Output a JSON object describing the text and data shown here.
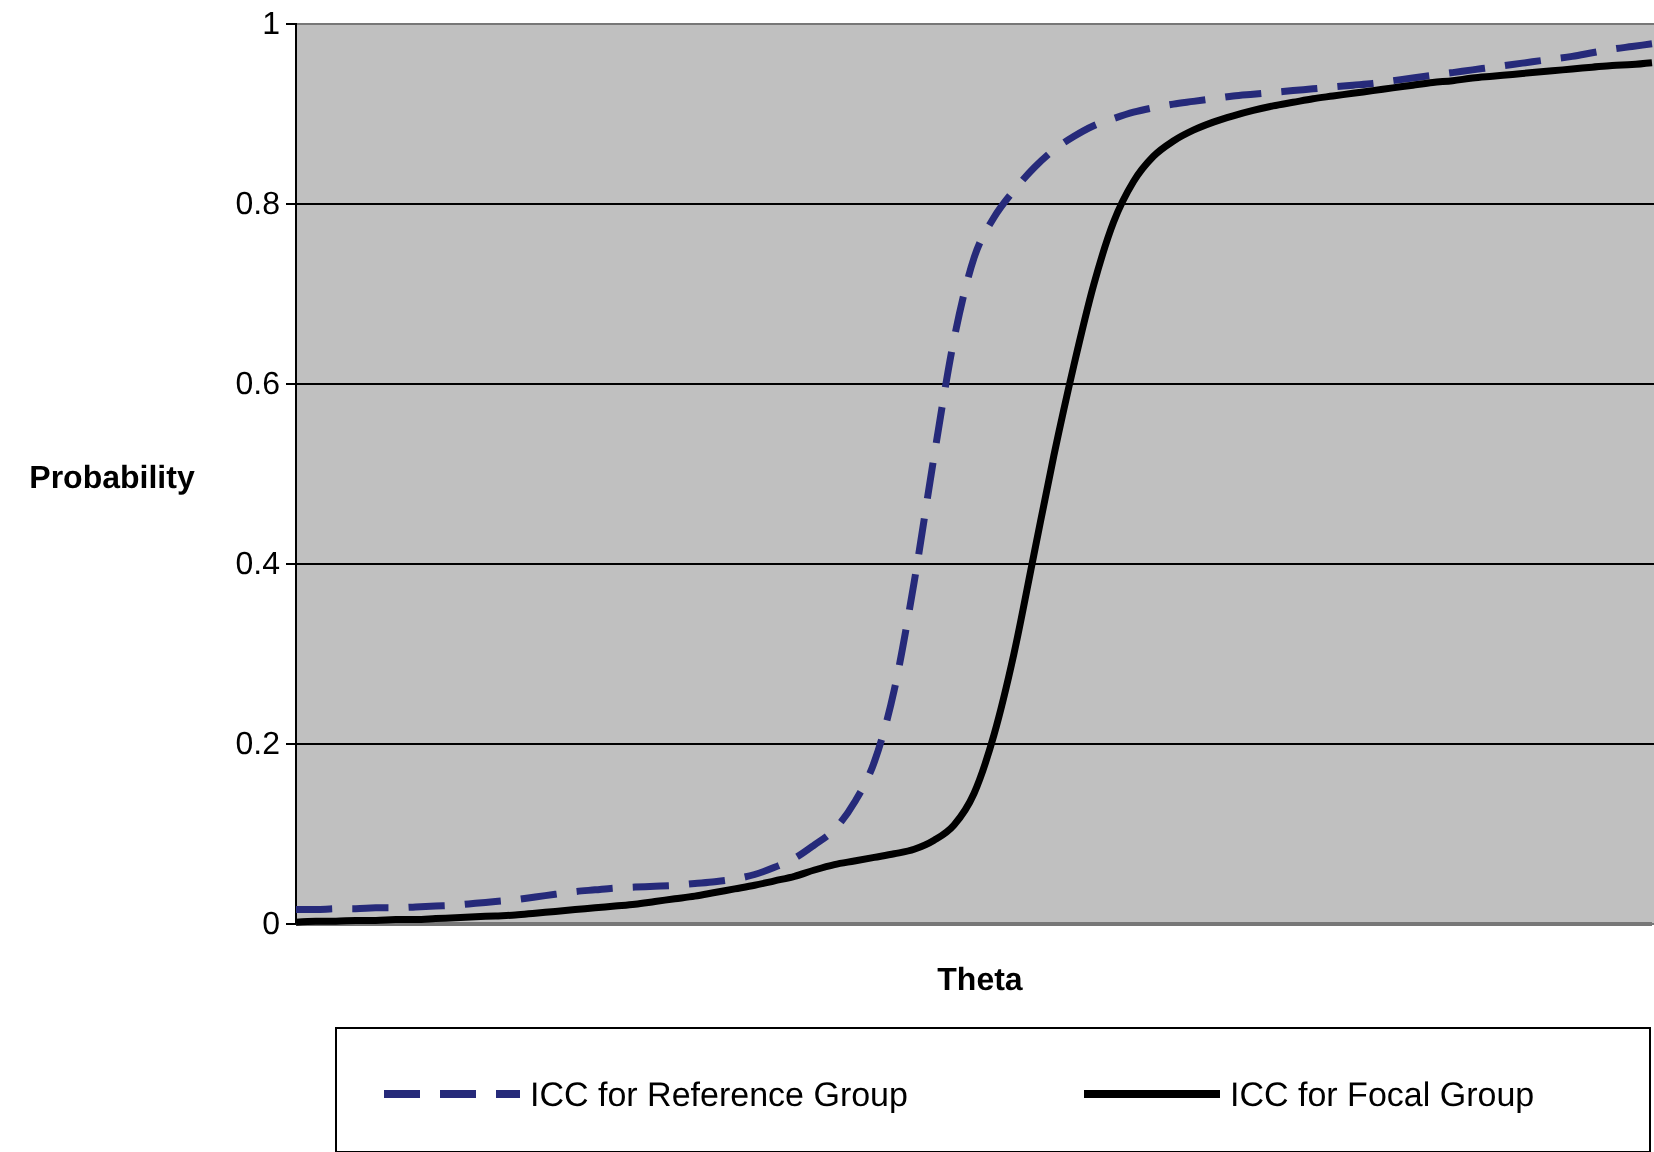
{
  "chart_data": {
    "type": "line",
    "xlabel": "Theta",
    "ylabel": "Probability",
    "categories": [
      null,
      null,
      null,
      null,
      null,
      null,
      null,
      null,
      null,
      null,
      null,
      null,
      null,
      null,
      null,
      null,
      null,
      null,
      null,
      null,
      null,
      null,
      null,
      null,
      null,
      null,
      null,
      null,
      null,
      null,
      null,
      null,
      null,
      null,
      null,
      null,
      null,
      null,
      null,
      null,
      null,
      null,
      null,
      null,
      null,
      null,
      null,
      null,
      null,
      null,
      null,
      null,
      null,
      null,
      null,
      null,
      null,
      null,
      null,
      null,
      null,
      null,
      null,
      null,
      null,
      null,
      null,
      null,
      null
    ],
    "ylim": [
      0,
      1
    ],
    "yticks": [
      0,
      0.2,
      0.4,
      0.6,
      0.8,
      1
    ],
    "grid": "y",
    "legend": "bottom",
    "tick_labels": "y",
    "marker": "none",
    "series": [
      {
        "name": "ICC for Reference Group",
        "color": "#262a7a",
        "line_style": "dashed",
        "values": [
          0.016,
          0.016,
          0.017,
          0.017,
          0.018,
          0.018,
          0.019,
          0.02,
          0.021,
          0.023,
          0.025,
          0.027,
          0.03,
          0.033,
          0.036,
          0.038,
          0.04,
          0.041,
          0.042,
          0.043,
          0.045,
          0.047,
          0.05,
          0.055,
          0.063,
          0.073,
          0.088,
          0.105,
          0.135,
          0.18,
          0.26,
          0.38,
          0.52,
          0.65,
          0.74,
          0.785,
          0.815,
          0.84,
          0.86,
          0.875,
          0.887,
          0.895,
          0.902,
          0.907,
          0.911,
          0.914,
          0.917,
          0.92,
          0.922,
          0.924,
          0.926,
          0.928,
          0.93,
          0.932,
          0.934,
          0.937,
          0.94,
          0.943,
          0.946,
          0.949,
          0.952,
          0.955,
          0.958,
          0.961,
          0.964,
          0.968,
          0.972,
          0.975,
          0.978
        ]
      },
      {
        "name": "ICC for Focal Group",
        "color": "#000000",
        "line_style": "solid",
        "values": [
          0.002,
          0.003,
          0.003,
          0.004,
          0.004,
          0.005,
          0.005,
          0.006,
          0.007,
          0.008,
          0.009,
          0.01,
          0.012,
          0.014,
          0.016,
          0.018,
          0.02,
          0.022,
          0.025,
          0.028,
          0.031,
          0.035,
          0.039,
          0.043,
          0.048,
          0.053,
          0.06,
          0.066,
          0.07,
          0.074,
          0.078,
          0.083,
          0.093,
          0.11,
          0.145,
          0.21,
          0.3,
          0.41,
          0.52,
          0.62,
          0.71,
          0.78,
          0.825,
          0.853,
          0.87,
          0.882,
          0.891,
          0.898,
          0.904,
          0.909,
          0.913,
          0.917,
          0.92,
          0.923,
          0.926,
          0.929,
          0.932,
          0.935,
          0.937,
          0.94,
          0.942,
          0.944,
          0.946,
          0.948,
          0.95,
          0.952,
          0.954,
          0.955,
          0.957
        ]
      }
    ]
  }
}
